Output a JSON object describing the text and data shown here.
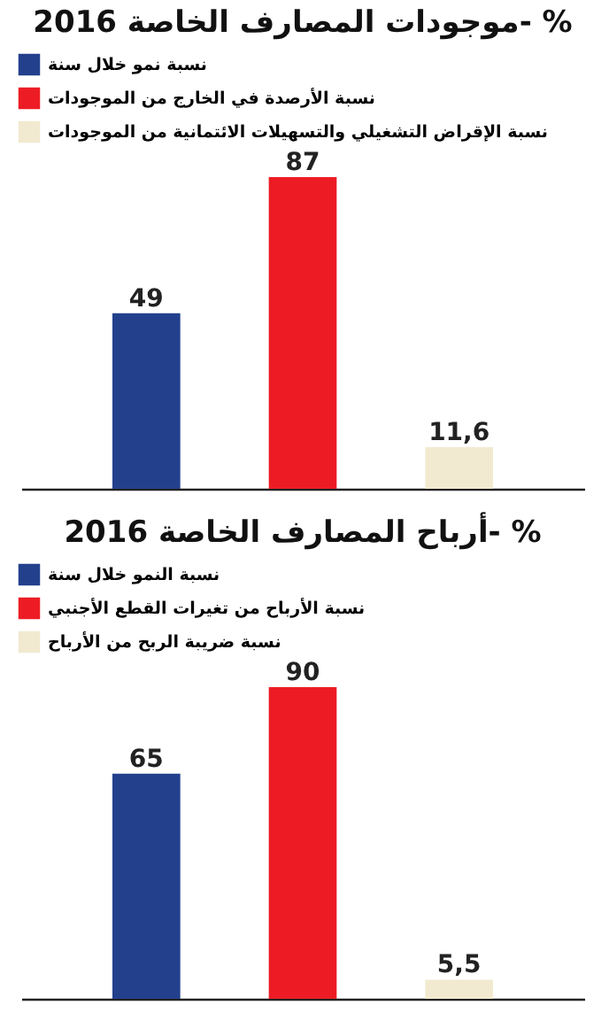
{
  "chart_data": [
    {
      "type": "bar",
      "title": "موجودات المصارف الخاصة 2016- %",
      "categories": [
        null,
        null,
        null
      ],
      "legend": "top",
      "stacked": true,
      "tick_labels": false,
      "series": [
        {
          "name": "نسبة نمو خلال سنة",
          "color": "#22408c",
          "values": [
            49,
            null,
            null
          ],
          "value_labels": [
            "49",
            null,
            null
          ]
        },
        {
          "name": "نسبة الأرصدة في الخارج من الموجودات",
          "color": "#ed1c24",
          "values": [
            null,
            87,
            null
          ],
          "value_labels": [
            null,
            "87",
            null
          ]
        },
        {
          "name": "نسبة الإقراض التشغيلي والتسهيلات الائتمانية من الموجودات",
          "color": "#f1ead0",
          "values": [
            null,
            null,
            11.6
          ],
          "value_labels": [
            null,
            null,
            "11,6"
          ]
        }
      ]
    },
    {
      "type": "bar",
      "title": "أرباح المصارف الخاصة 2016- %",
      "categories": [
        null,
        null,
        null
      ],
      "legend": "top",
      "stacked": true,
      "tick_labels": false,
      "series": [
        {
          "name": "نسبة النمو خلال سنة",
          "color": "#22408c",
          "values": [
            65,
            null,
            null
          ],
          "value_labels": [
            "65",
            null,
            null
          ]
        },
        {
          "name": "نسبة الأرباح من تغيرات القطع الأجنبي",
          "color": "#ed1c24",
          "values": [
            null,
            90,
            null
          ],
          "value_labels": [
            null,
            "90",
            null
          ]
        },
        {
          "name": "نسبة ضريبة الربح من الأرباح",
          "color": "#f1ead0",
          "values": [
            null,
            null,
            5.5
          ],
          "value_labels": [
            null,
            null,
            "5,5"
          ]
        }
      ]
    }
  ]
}
